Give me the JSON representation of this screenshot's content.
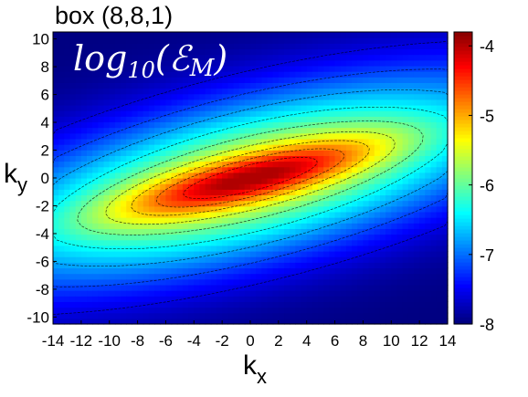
{
  "title": "box (8,8,1)",
  "annotation": {
    "prefix": "log",
    "sub": "10",
    "open": "(",
    "symbol": "ℰ",
    "symbol_sub": "M",
    "close": ")"
  },
  "xlabel": {
    "main": "k",
    "sub": "x"
  },
  "ylabel": {
    "main": "k",
    "sub": "y"
  },
  "chart_data": {
    "type": "heatmap",
    "title": "box (8,8,1)",
    "annotation": "log10(ℰM)",
    "xlabel": "kx",
    "ylabel": "ky",
    "xlim": [
      -14,
      14
    ],
    "ylim": [
      -10.5,
      10.5
    ],
    "x_ticks": [
      -14,
      -12,
      -10,
      -8,
      -6,
      -4,
      -2,
      0,
      2,
      4,
      6,
      8,
      10,
      12,
      14
    ],
    "y_ticks": [
      -10,
      -8,
      -6,
      -4,
      -2,
      0,
      2,
      4,
      6,
      8,
      10
    ],
    "colorbar": {
      "min": -8,
      "max": -3.8,
      "ticks": [
        -8,
        -7,
        -6,
        -5,
        -4
      ],
      "colormap": "jet"
    },
    "contours": true,
    "field": {
      "description": "elongated maximum along ky ≈ 0.25·kx, peak ≈ -4.0 at centre, decreasing to ≈ -8 far from the ridge",
      "peak_value": -4.0,
      "ridge_slope": 0.25,
      "min_value": -8
    }
  }
}
